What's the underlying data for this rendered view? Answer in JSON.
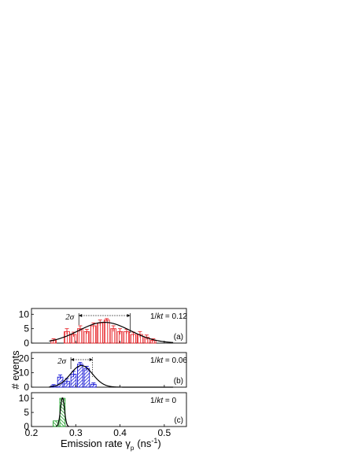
{
  "figure": {
    "ylabel": "# events",
    "xlabel_main": "Emission rate γ",
    "xlabel_sub": "p",
    "xlabel_unit": "(ns",
    "xlabel_exp": "-1",
    "xlabel_close": ")"
  },
  "chart_data": [
    {
      "type": "bar",
      "panel": "(a)",
      "condition_prefix": "1/",
      "condition_var": "kt",
      "condition_value": "= 0.12",
      "sigma_label": "2σ",
      "color": "#e8262b",
      "hatch": "vertical",
      "xlim": [
        0.2,
        0.55
      ],
      "ylim": [
        0,
        12
      ],
      "xticks": [
        "0.2",
        "0.3",
        "0.4",
        "0.5"
      ],
      "yticks": [
        "0",
        "5",
        "10"
      ],
      "bins": [
        0.25,
        0.28,
        0.295,
        0.31,
        0.325,
        0.34,
        0.355,
        0.37,
        0.385,
        0.4,
        0.415,
        0.43,
        0.445,
        0.46,
        0.475
      ],
      "bin_width": 0.015,
      "values": [
        1,
        4,
        3,
        5,
        4,
        6,
        7,
        8,
        5,
        4,
        4,
        3,
        3,
        2,
        1
      ],
      "errors": [
        0.5,
        1,
        0.8,
        1,
        0.8,
        1,
        1,
        0.5,
        1,
        1,
        0.8,
        0.8,
        1,
        0.8,
        0.5
      ],
      "fit": {
        "mu": 0.365,
        "sigma": 0.058,
        "amp": 7.2
      },
      "sigma_arrow": [
        0.307,
        0.423
      ]
    },
    {
      "type": "bar",
      "panel": "(b)",
      "condition_prefix": "1/",
      "condition_var": "kt",
      "condition_value": "= 0.06",
      "sigma_label": "2σ",
      "color": "#1d1ed8",
      "hatch": "diagonal",
      "xlim": [
        0.2,
        0.55
      ],
      "ylim": [
        0,
        24
      ],
      "xticks": [
        "0.2",
        "0.3",
        "0.4",
        "0.5"
      ],
      "yticks": [
        "0",
        "10",
        "20"
      ],
      "bins": [
        0.25,
        0.265,
        0.28,
        0.295,
        0.31,
        0.325,
        0.34
      ],
      "bin_width": 0.015,
      "values": [
        1,
        7,
        4,
        9,
        16,
        13,
        2
      ],
      "errors": [
        0.8,
        1.5,
        2,
        2,
        1.2,
        1.5,
        1
      ],
      "fit": {
        "mu": 0.313,
        "sigma": 0.025,
        "amp": 15
      },
      "sigma_arrow": [
        0.289,
        0.338
      ]
    },
    {
      "type": "bar",
      "panel": "(c)",
      "condition_prefix": "1/",
      "condition_var": "kt",
      "condition_value": "= 0",
      "color": "#1fa02a",
      "hatch": "diagonal-back",
      "xlim": [
        0.2,
        0.55
      ],
      "ylim": [
        0,
        12
      ],
      "xticks": [
        "0.2",
        "0.3",
        "0.4",
        "0.5"
      ],
      "yticks": [
        "0",
        "5",
        "10"
      ],
      "bins": [
        0.255,
        0.27
      ],
      "bin_width": 0.015,
      "values": [
        2,
        10
      ],
      "errors": [
        0,
        0
      ],
      "fit": {
        "mu": 0.27,
        "sigma": 0.0045,
        "amp": 10.2
      },
      "xlabels_shown": true
    }
  ]
}
